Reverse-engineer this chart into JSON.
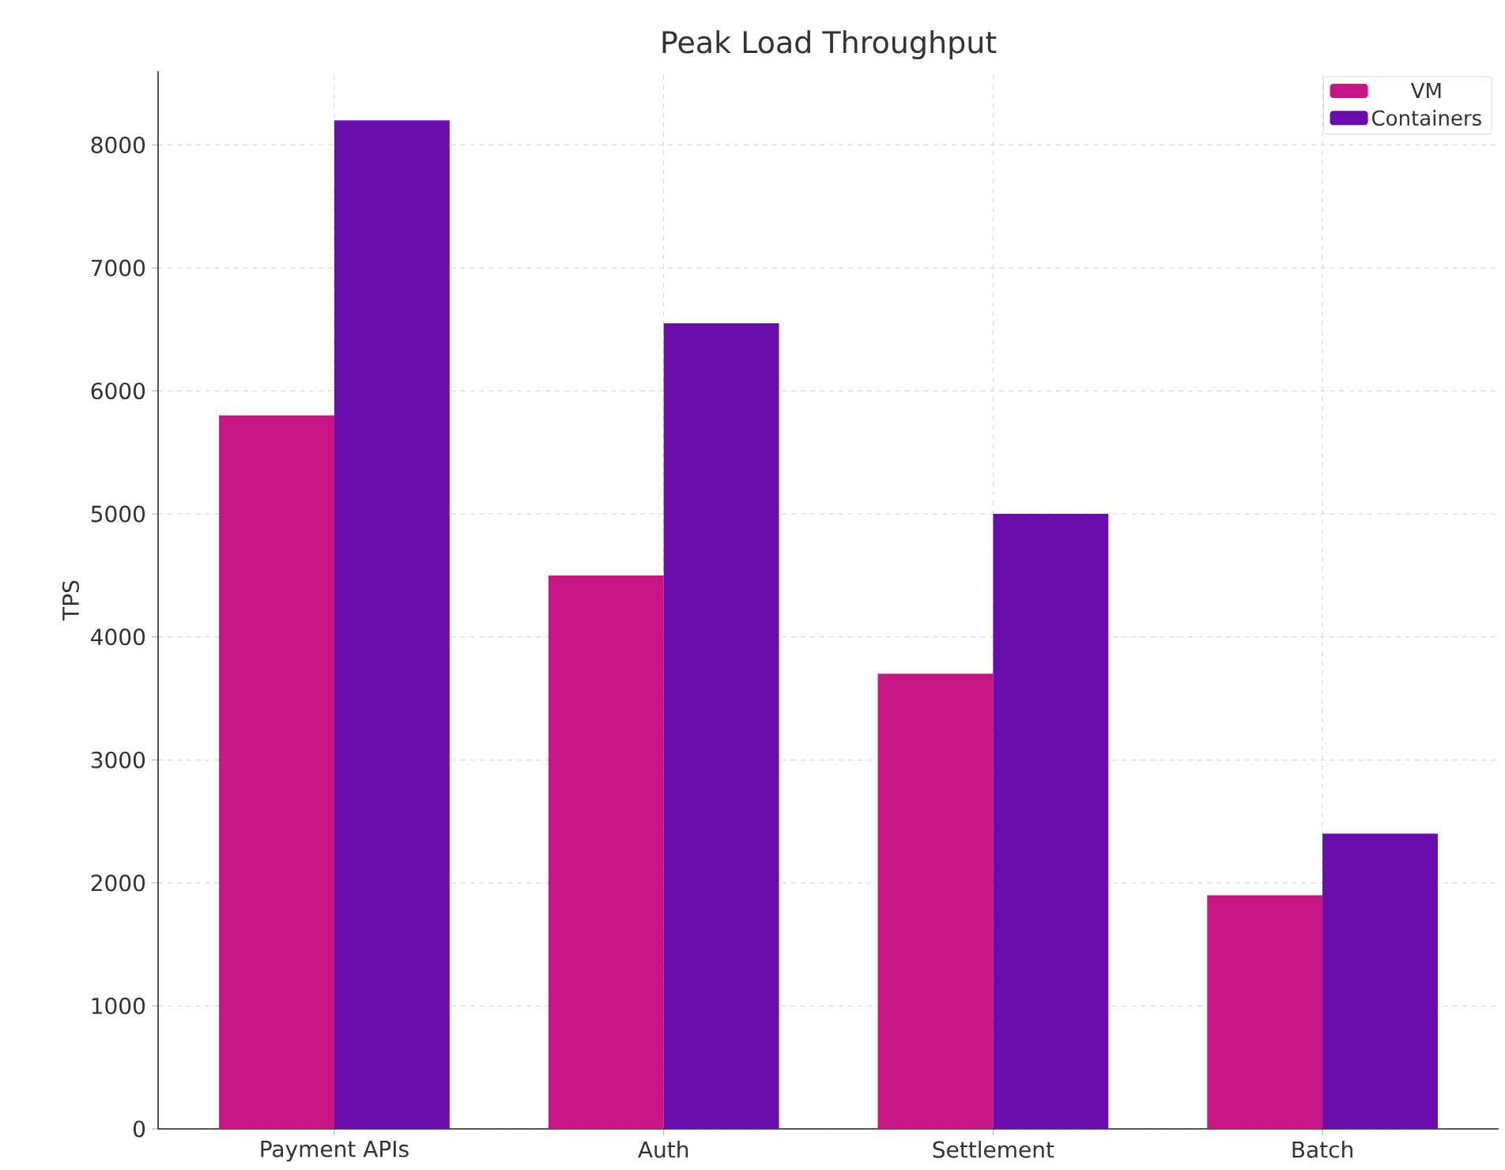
{
  "chart_data": {
    "type": "bar",
    "title": "Peak Load Throughput",
    "ylabel": "TPS",
    "categories": [
      "Payment APIs",
      "Auth",
      "Settlement",
      "Batch"
    ],
    "series": [
      {
        "name": "VM",
        "color": "#c71585",
        "values": [
          5800,
          4500,
          3700,
          1900
        ]
      },
      {
        "name": "Containers",
        "color": "#6a0dad",
        "values": [
          8200,
          6550,
          5000,
          2400
        ]
      }
    ],
    "ylim": [
      0,
      8600
    ],
    "yticks": [
      0,
      1000,
      2000,
      3000,
      4000,
      5000,
      6000,
      7000,
      8000
    ],
    "grid": true,
    "legend": "top right"
  }
}
